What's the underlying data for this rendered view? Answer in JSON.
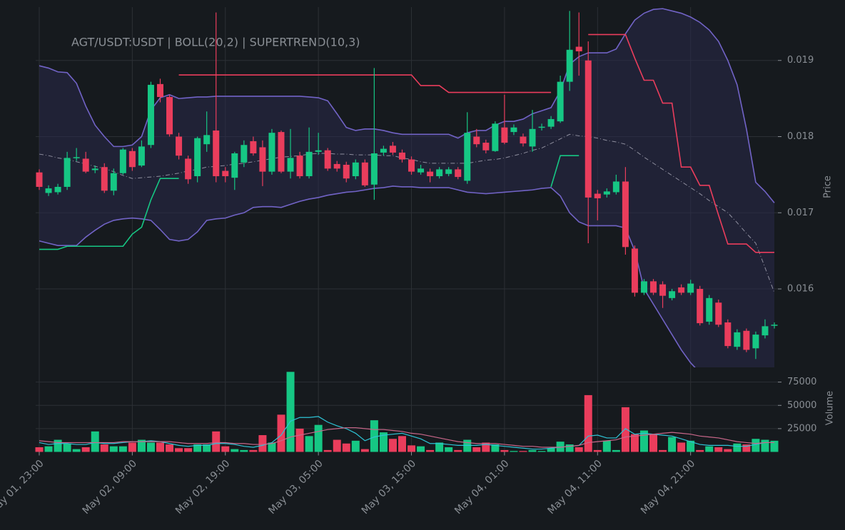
{
  "chart_data": {
    "type": "candlestick",
    "title": "AGT/USDT:USDT | BOLL(20,2) | SUPERTREND(10,3)",
    "categories": [
      "May 01, 23:00",
      null,
      null,
      null,
      null,
      null,
      null,
      null,
      null,
      null,
      "May 02, 09:00",
      null,
      null,
      null,
      null,
      null,
      null,
      null,
      null,
      null,
      "May 02, 19:00",
      null,
      null,
      null,
      null,
      null,
      null,
      null,
      null,
      null,
      "May 03, 05:00",
      null,
      null,
      null,
      null,
      null,
      null,
      null,
      null,
      null,
      "May 03, 15:00",
      null,
      null,
      null,
      null,
      null,
      null,
      null,
      null,
      null,
      "May 04, 01:00",
      null,
      null,
      null,
      null,
      null,
      null,
      null,
      null,
      null,
      "May 04, 11:00",
      null,
      null,
      null,
      null,
      null,
      null,
      null,
      null,
      null,
      "May 04, 21:00",
      null,
      null,
      null,
      null,
      null,
      null,
      null,
      null,
      null
    ],
    "open": [
      0.01753,
      0.01726,
      0.01727,
      0.01734,
      0.01772,
      0.01771,
      0.01756,
      0.0176,
      0.01729,
      0.01752,
      0.01781,
      0.01762,
      0.01789,
      0.01869,
      0.01852,
      0.018,
      0.01771,
      0.01748,
      0.0179,
      0.01808,
      0.01755,
      0.01746,
      0.01766,
      0.01794,
      0.01786,
      0.01754,
      0.01806,
      0.01754,
      0.01775,
      0.01748,
      0.0178,
      0.01782,
      0.01764,
      0.01763,
      0.01748,
      0.01766,
      0.01737,
      0.01779,
      0.01788,
      0.01779,
      0.0177,
      0.01753,
      0.01754,
      0.01748,
      0.01751,
      0.01757,
      0.01742,
      0.018,
      0.01792,
      0.01781,
      0.01812,
      0.01806,
      0.018,
      0.01787,
      0.01812,
      0.01813,
      0.0182,
      0.01872,
      0.01918,
      0.019,
      0.01725,
      0.01724,
      0.01727,
      0.01741,
      0.01653,
      0.01595,
      0.0161,
      0.01606,
      0.01588,
      0.01602,
      0.01595,
      0.016,
      0.01557,
      0.01582,
      0.01556,
      0.01524,
      0.01545,
      0.01522,
      0.01539,
      0.01552
    ],
    "high": [
      0.01757,
      0.01736,
      0.01738,
      0.0178,
      0.01785,
      0.0178,
      0.01762,
      0.01765,
      0.01758,
      0.01785,
      0.01785,
      0.01795,
      0.01872,
      0.01876,
      0.01855,
      0.01805,
      0.01775,
      0.018,
      0.01833,
      0.01963,
      0.0176,
      0.0178,
      0.01795,
      0.018,
      0.01795,
      0.0181,
      0.01808,
      0.0181,
      0.0178,
      0.01812,
      0.01805,
      0.01785,
      0.01768,
      0.01767,
      0.0177,
      0.0177,
      0.0189,
      0.01788,
      0.01793,
      0.01783,
      0.01774,
      0.01763,
      0.01758,
      0.0176,
      0.0176,
      0.0176,
      0.01832,
      0.0181,
      0.01796,
      0.0182,
      0.01855,
      0.01816,
      0.01804,
      0.01835,
      0.01817,
      0.01827,
      0.0188,
      0.01965,
      0.01963,
      0.01925,
      0.0173,
      0.01732,
      0.0175,
      0.0176,
      0.01657,
      0.01613,
      0.01613,
      0.0161,
      0.016,
      0.01606,
      0.01612,
      0.01604,
      0.01592,
      0.01586,
      0.0156,
      0.01547,
      0.01548,
      0.01544,
      0.0156,
      0.01556
    ],
    "low": [
      0.0173,
      0.01722,
      0.01724,
      0.0173,
      0.01768,
      0.01752,
      0.01752,
      0.01726,
      0.01723,
      0.0175,
      0.01755,
      0.0176,
      0.01785,
      0.01845,
      0.018,
      0.0177,
      0.01738,
      0.0174,
      0.0178,
      0.0174,
      0.0174,
      0.0173,
      0.0176,
      0.01775,
      0.01735,
      0.0175,
      0.01752,
      0.01745,
      0.01745,
      0.01745,
      0.01776,
      0.01755,
      0.01754,
      0.0174,
      0.01744,
      0.01734,
      0.01717,
      0.01775,
      0.01776,
      0.01766,
      0.0175,
      0.0175,
      0.0174,
      0.01745,
      0.01748,
      0.01744,
      0.01738,
      0.01786,
      0.01778,
      0.0178,
      0.0179,
      0.01802,
      0.01787,
      0.0178,
      0.01808,
      0.0181,
      0.01818,
      0.0186,
      0.0188,
      0.0166,
      0.0169,
      0.0172,
      0.01724,
      0.01645,
      0.0159,
      0.01592,
      0.01592,
      0.01575,
      0.01585,
      0.01592,
      0.01592,
      0.01552,
      0.01553,
      0.0155,
      0.01522,
      0.0152,
      0.01517,
      0.01508,
      0.01535,
      0.01548
    ],
    "close": [
      0.01734,
      0.01732,
      0.01734,
      0.01772,
      0.01773,
      0.01754,
      0.01758,
      0.01729,
      0.01752,
      0.01783,
      0.0176,
      0.01787,
      0.01868,
      0.01852,
      0.01803,
      0.01775,
      0.01744,
      0.01798,
      0.01802,
      0.01748,
      0.01748,
      0.01778,
      0.01789,
      0.01778,
      0.01754,
      0.01805,
      0.01754,
      0.01772,
      0.01748,
      0.0178,
      0.01782,
      0.01758,
      0.01758,
      0.01745,
      0.01766,
      0.01736,
      0.01778,
      0.01784,
      0.01779,
      0.0177,
      0.01754,
      0.01758,
      0.01748,
      0.01757,
      0.01757,
      0.01747,
      0.01805,
      0.0179,
      0.01782,
      0.01817,
      0.01792,
      0.01812,
      0.01791,
      0.0181,
      0.01813,
      0.01823,
      0.01872,
      0.01914,
      0.01912,
      0.0172,
      0.01719,
      0.01728,
      0.01741,
      0.01655,
      0.01595,
      0.0161,
      0.01595,
      0.01591,
      0.01597,
      0.01595,
      0.01607,
      0.01555,
      0.01588,
      0.01553,
      0.01525,
      0.01543,
      0.0152,
      0.0154,
      0.01551,
      0.01553
    ],
    "up_color": "#16c784",
    "down_color": "#ea3d5c",
    "ylabel": "Price",
    "ylim": [
      0.01497,
      0.0197
    ],
    "yticks": [
      0.016,
      0.017,
      0.018,
      0.019
    ],
    "grid": true,
    "band_fill": "#2a2a4a",
    "overlays": [
      {
        "color": "#7163c6",
        "style": "solid",
        "values": [
          0.01893,
          0.0189,
          0.01885,
          0.01884,
          0.0187,
          0.0184,
          0.01815,
          0.018,
          0.01787,
          0.01787,
          0.01789,
          0.018,
          0.01835,
          0.01851,
          0.01855,
          0.0185,
          0.01851,
          0.01852,
          0.01852,
          0.01853,
          0.01853,
          0.01853,
          0.01853,
          0.01853,
          0.01853,
          0.01853,
          0.01853,
          0.01853,
          0.01853,
          0.01852,
          0.01851,
          0.01847,
          0.0183,
          0.01812,
          0.01808,
          0.0181,
          0.0181,
          0.01808,
          0.01805,
          0.01803,
          0.01803,
          0.01803,
          0.01803,
          0.01803,
          0.01803,
          0.01798,
          0.01805,
          0.01808,
          0.01808,
          0.01815,
          0.0182,
          0.0182,
          0.01823,
          0.0183,
          0.01834,
          0.01838,
          0.0186,
          0.01895,
          0.01905,
          0.0191,
          0.0191,
          0.0191,
          0.01915,
          0.01935,
          0.01953,
          0.01962,
          0.01967,
          0.01968,
          0.01965,
          0.01962,
          0.01957,
          0.0195,
          0.0194,
          0.01925,
          0.019,
          0.01868,
          0.0181,
          0.0174,
          0.01728,
          0.01713
        ]
      },
      {
        "color": "#8e8e9e",
        "style": "dash-dot",
        "values": [
          0.01777,
          0.01775,
          0.01772,
          0.0177,
          0.01767,
          0.01764,
          0.01761,
          0.01758,
          0.01754,
          0.01749,
          0.01745,
          0.01746,
          0.01747,
          0.01748,
          0.0175,
          0.01752,
          0.01755,
          0.01757,
          0.0176,
          0.01761,
          0.01762,
          0.01764,
          0.01765,
          0.01767,
          0.01769,
          0.01771,
          0.01773,
          0.01774,
          0.01775,
          0.01777,
          0.01778,
          0.01778,
          0.01777,
          0.01777,
          0.01776,
          0.01776,
          0.01776,
          0.01775,
          0.01775,
          0.01772,
          0.0177,
          0.01767,
          0.01765,
          0.01765,
          0.01765,
          0.01765,
          0.01765,
          0.01767,
          0.01769,
          0.0177,
          0.01772,
          0.01775,
          0.01778,
          0.01782,
          0.01785,
          0.01791,
          0.01797,
          0.01803,
          0.01801,
          0.018,
          0.01798,
          0.01795,
          0.01793,
          0.0179,
          0.01782,
          0.01773,
          0.01765,
          0.01757,
          0.01749,
          0.01741,
          0.01733,
          0.01725,
          0.01716,
          0.01708,
          0.017,
          0.01687,
          0.01673,
          0.0166,
          0.01628,
          0.01595
        ]
      },
      {
        "color": "#7163c6",
        "style": "solid",
        "values": [
          0.01663,
          0.0166,
          0.01657,
          0.01657,
          0.01657,
          0.01668,
          0.01677,
          0.01685,
          0.0169,
          0.01692,
          0.01693,
          0.01692,
          0.0169,
          0.01678,
          0.01665,
          0.01663,
          0.01665,
          0.01675,
          0.0169,
          0.01692,
          0.01693,
          0.01697,
          0.017,
          0.01707,
          0.01708,
          0.01708,
          0.01707,
          0.01711,
          0.01715,
          0.01718,
          0.0172,
          0.01723,
          0.01725,
          0.01727,
          0.01728,
          0.0173,
          0.01732,
          0.01733,
          0.01735,
          0.01734,
          0.01734,
          0.01733,
          0.01733,
          0.01733,
          0.01733,
          0.0173,
          0.01727,
          0.01726,
          0.01725,
          0.01726,
          0.01727,
          0.01728,
          0.01729,
          0.0173,
          0.01732,
          0.01733,
          0.01722,
          0.017,
          0.01688,
          0.01683,
          0.01683,
          0.01683,
          0.01683,
          0.0168,
          0.0165,
          0.016,
          0.0158,
          0.0156,
          0.0154,
          0.0152,
          0.01503,
          0.0149,
          0.01478,
          0.01468,
          0.0146,
          0.01453,
          0.01447,
          0.01442,
          0.01438,
          0.01435
        ]
      },
      {
        "color": "#16c784",
        "style": "solid",
        "values": [
          0.01652,
          0.01652,
          0.01652,
          0.01656,
          0.01656,
          0.01656,
          0.01656,
          0.01656,
          0.01656,
          0.01656,
          0.01672,
          0.01681,
          0.01717,
          0.01745,
          0.01745,
          0.01745,
          null,
          null,
          null,
          null,
          null,
          null,
          null,
          null,
          null,
          null,
          null,
          null,
          null,
          null,
          null,
          null,
          null,
          null,
          null,
          null,
          null,
          null,
          null,
          null,
          null,
          null,
          null,
          null,
          null,
          null,
          null,
          null,
          null,
          null,
          null,
          null,
          null,
          null,
          null,
          0.01734,
          0.01775,
          0.01775,
          0.01775,
          null,
          null,
          null,
          null,
          null,
          null,
          null,
          null,
          null,
          null,
          null,
          null,
          null,
          null,
          null,
          null,
          null,
          null,
          null,
          null,
          null
        ]
      },
      {
        "color": "#ea3d5c",
        "style": "solid",
        "values": [
          null,
          null,
          null,
          null,
          null,
          null,
          null,
          null,
          null,
          null,
          null,
          null,
          null,
          null,
          null,
          0.01881,
          0.01881,
          0.01881,
          0.01881,
          0.01881,
          0.01881,
          0.01881,
          0.01881,
          0.01881,
          0.01881,
          0.01881,
          0.01881,
          0.01881,
          0.01881,
          0.01881,
          0.01881,
          0.01881,
          0.01881,
          0.01881,
          0.01881,
          0.01881,
          0.01881,
          0.01881,
          0.01881,
          0.01881,
          0.01881,
          0.01867,
          0.01867,
          0.01867,
          0.01858,
          0.01858,
          0.01858,
          0.01858,
          0.01858,
          0.01858,
          0.01858,
          0.01858,
          0.01858,
          0.01858,
          0.01858,
          0.01858,
          null,
          null,
          null,
          0.01934,
          0.01934,
          0.01934,
          0.01934,
          0.01934,
          0.01903,
          0.01874,
          0.01874,
          0.01844,
          0.01844,
          0.0176,
          0.0176,
          0.01736,
          0.01736,
          0.01697,
          0.01659,
          0.01659,
          0.01659,
          0.01648,
          0.01648,
          0.01648
        ]
      }
    ],
    "volume": {
      "ylabel": "Volume",
      "ylim": [
        0,
        87000
      ],
      "yticks": [
        25000,
        50000,
        75000
      ],
      "values": [
        5000,
        6000,
        13000,
        9000,
        3000,
        5000,
        22000,
        8000,
        6000,
        6000,
        10000,
        13000,
        10000,
        10000,
        8000,
        4000,
        4000,
        8000,
        8000,
        22000,
        6000,
        3000,
        2000,
        2000,
        18000,
        10000,
        40000,
        86000,
        25000,
        17000,
        29000,
        2000,
        13000,
        9000,
        12000,
        3000,
        34000,
        21000,
        14000,
        17000,
        7000,
        6000,
        2000,
        10000,
        5000,
        2000,
        13000,
        5000,
        10000,
        8000,
        2000,
        1000,
        1000,
        2000,
        1000,
        4000,
        11000,
        8000,
        5000,
        61000,
        2000,
        12000,
        2000,
        48000,
        19000,
        23000,
        19000,
        2000,
        16000,
        10000,
        12000,
        2000,
        6000,
        5000,
        3000,
        9000,
        8000,
        14000,
        13000,
        12000
      ],
      "lines": [
        {
          "color": "#2ec4d6",
          "values": [
            10000,
            8000,
            9000,
            9000,
            8000,
            8000,
            10000,
            9000,
            9000,
            10000,
            11000,
            11000,
            12000,
            11000,
            9000,
            7000,
            6000,
            7000,
            7000,
            9000,
            9000,
            8000,
            6000,
            5000,
            7000,
            10000,
            18000,
            33000,
            37000,
            37000,
            38000,
            32000,
            28000,
            25000,
            20000,
            12000,
            16000,
            18000,
            19000,
            20000,
            17000,
            14000,
            9000,
            9000,
            8000,
            7000,
            7000,
            7000,
            8000,
            7000,
            6000,
            5000,
            4000,
            3000,
            3000,
            4000,
            5000,
            6000,
            7000,
            17000,
            18000,
            15000,
            15000,
            25000,
            19000,
            20000,
            19000,
            18000,
            17000,
            14000,
            11000,
            8000,
            7000,
            7000,
            7000,
            6000,
            6000,
            8000,
            10000,
            10000
          ]
        },
        {
          "color": "#c9678a",
          "values": [
            12000,
            11000,
            10000,
            10000,
            10000,
            10000,
            10000,
            10000,
            10000,
            11000,
            11000,
            11000,
            11000,
            11000,
            11000,
            10000,
            9000,
            9000,
            9000,
            10000,
            10000,
            9000,
            9000,
            8000,
            8000,
            9000,
            12000,
            16000,
            18000,
            20000,
            22000,
            24000,
            25000,
            26000,
            26000,
            25000,
            24000,
            24000,
            23000,
            22000,
            20000,
            19000,
            17000,
            15000,
            13000,
            11000,
            10000,
            9000,
            9000,
            9000,
            8000,
            7000,
            6000,
            6000,
            5000,
            5000,
            5000,
            6000,
            7000,
            10000,
            11000,
            12000,
            13000,
            16000,
            17000,
            18000,
            19000,
            20000,
            21000,
            20000,
            19000,
            17000,
            16000,
            15000,
            13000,
            11000,
            10000,
            9000,
            10000,
            10000
          ]
        }
      ]
    }
  }
}
